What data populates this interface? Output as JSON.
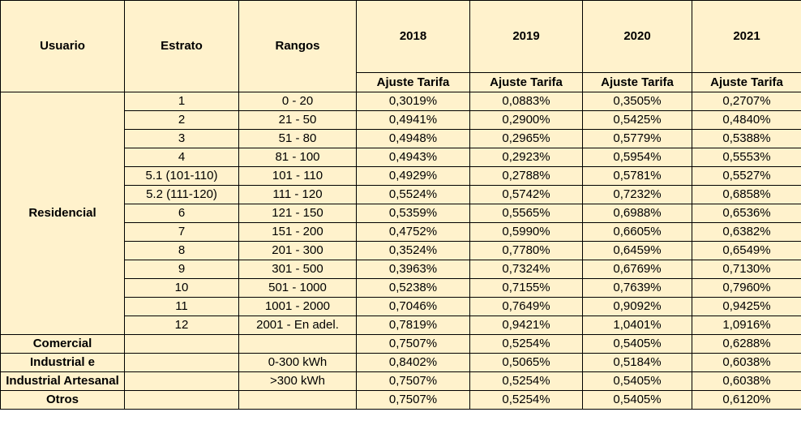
{
  "headers": {
    "usuario": "Usuario",
    "estrato": "Estrato",
    "rangos": "Rangos",
    "years": [
      "2018",
      "2019",
      "2020",
      "2021"
    ],
    "sub_label": "Ajuste Tarifa"
  },
  "residencial": {
    "label": "Residencial",
    "rows": [
      {
        "estrato": "1",
        "rango": "0 - 20",
        "v": [
          "0,3019%",
          "0,0883%",
          "0,3505%",
          "0,2707%"
        ]
      },
      {
        "estrato": "2",
        "rango": "21 - 50",
        "v": [
          "0,4941%",
          "0,2900%",
          "0,5425%",
          "0,4840%"
        ]
      },
      {
        "estrato": "3",
        "rango": "51 - 80",
        "v": [
          "0,4948%",
          "0,2965%",
          "0,5779%",
          "0,5388%"
        ]
      },
      {
        "estrato": "4",
        "rango": "81 - 100",
        "v": [
          "0,4943%",
          "0,2923%",
          "0,5954%",
          "0,5553%"
        ]
      },
      {
        "estrato": "5.1 (101-110)",
        "rango": "101 - 110",
        "v": [
          "0,4929%",
          "0,2788%",
          "0,5781%",
          "0,5527%"
        ]
      },
      {
        "estrato": "5.2 (111-120)",
        "rango": "111 - 120",
        "v": [
          "0,5524%",
          "0,5742%",
          "0,7232%",
          "0,6858%"
        ]
      },
      {
        "estrato": "6",
        "rango": "121 - 150",
        "v": [
          "0,5359%",
          "0,5565%",
          "0,6988%",
          "0,6536%"
        ]
      },
      {
        "estrato": "7",
        "rango": "151 - 200",
        "v": [
          "0,4752%",
          "0,5990%",
          "0,6605%",
          "0,6382%"
        ]
      },
      {
        "estrato": "8",
        "rango": "201 - 300",
        "v": [
          "0,3524%",
          "0,7780%",
          "0,6459%",
          "0,6549%"
        ]
      },
      {
        "estrato": "9",
        "rango": "301 - 500",
        "v": [
          "0,3963%",
          "0,7324%",
          "0,6769%",
          "0,7130%"
        ]
      },
      {
        "estrato": "10",
        "rango": "501 - 1000",
        "v": [
          "0,5238%",
          "0,7155%",
          "0,7639%",
          "0,7960%"
        ]
      },
      {
        "estrato": "11",
        "rango": "1001 - 2000",
        "v": [
          "0,7046%",
          "0,7649%",
          "0,9092%",
          "0,9425%"
        ]
      },
      {
        "estrato": "12",
        "rango": "2001 - En adel.",
        "v": [
          "0,7819%",
          "0,9421%",
          "1,0401%",
          "1,0916%"
        ]
      }
    ]
  },
  "comercial": {
    "label": "Comercial",
    "v": [
      "0,7507%",
      "0,5254%",
      "0,5405%",
      "0,6288%"
    ]
  },
  "industrial": {
    "label_line1": "Industrial e",
    "label_line2": "Industrial Artesanal",
    "rows": [
      {
        "rango": "0-300 kWh",
        "v": [
          "0,8402%",
          "0,5065%",
          "0,5184%",
          "0,6038%"
        ]
      },
      {
        "rango": ">300 kWh",
        "v": [
          "0,7507%",
          "0,5254%",
          "0,5405%",
          "0,6038%"
        ]
      }
    ]
  },
  "otros": {
    "label": "Otros",
    "v": [
      "0,7507%",
      "0,5254%",
      "0,5405%",
      "0,6120%"
    ]
  }
}
